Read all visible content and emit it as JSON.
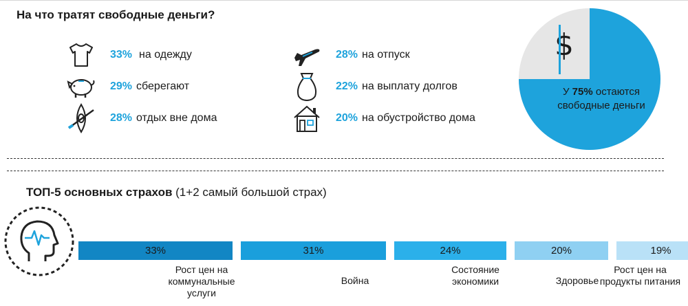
{
  "title": "На что тратят свободные деньги?",
  "spending": [
    {
      "icon": "tshirt-icon",
      "pct": "33%",
      "label": "на одежду"
    },
    {
      "icon": "piggy-bank-icon",
      "pct": "29%",
      "label": "сберегают"
    },
    {
      "icon": "kayak-icon",
      "pct": "28%",
      "label": "отдых вне дома"
    },
    {
      "icon": "airplane-icon",
      "pct": "28%",
      "label": "на отпуск"
    },
    {
      "icon": "money-bag-icon",
      "pct": "22%",
      "label": "на выплату долгов"
    },
    {
      "icon": "house-icon",
      "pct": "20%",
      "label": "на обустройство дома"
    }
  ],
  "pie": {
    "dollar": "$",
    "text_before": "У ",
    "text_pct": "75%",
    "text_after": " остаются свободные деньги",
    "value_fraction": 0.75,
    "colors": {
      "main": "#1ea3dc",
      "rest": "#e6e6e6"
    }
  },
  "fears_title_bold": "ТОП-5 основных страхов",
  "fears_title_rest": " (1+2 самый большой страх)",
  "chart_data": {
    "type": "bar",
    "categories": [
      "Рост цен на коммунальные услуги",
      "Война",
      "Состояние экономики",
      "Здоровье",
      "Рост цен на продукты питания"
    ],
    "values": [
      33,
      31,
      24,
      20,
      19
    ],
    "value_labels": [
      "33%",
      "31%",
      "24%",
      "20%",
      "19%"
    ],
    "colors": [
      "#1286c4",
      "#1a9fdc",
      "#2bb0ea",
      "#8fd0f2",
      "#b9e1f7"
    ]
  }
}
